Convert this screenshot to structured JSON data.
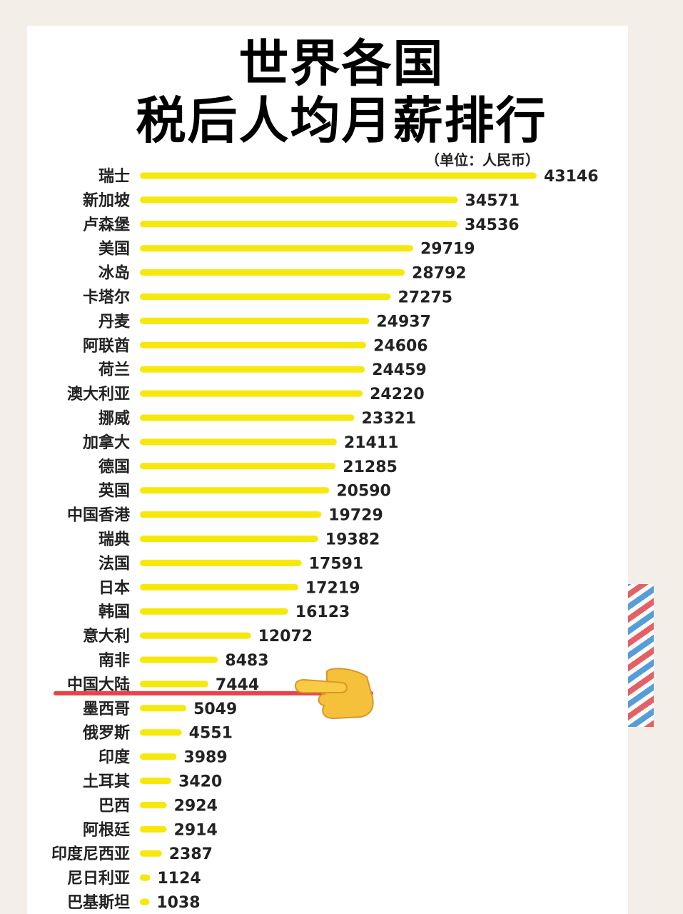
{
  "title_line1": "世界各国",
  "title_line2": "税后人均月薪排行",
  "unit": "（单位：人民币）",
  "highlight": {
    "country": "中国大陆",
    "line_color": "#e8434b",
    "icon": "pointing-hand-icon"
  },
  "colors": {
    "bar": "#f7e80c",
    "text": "#222222"
  },
  "chart_data": {
    "type": "bar",
    "orientation": "horizontal",
    "title": "世界各国 税后人均月薪排行",
    "unit": "（单位：人民币）",
    "categories": [
      "瑞士",
      "新加坡",
      "卢森堡",
      "美国",
      "冰岛",
      "卡塔尔",
      "丹麦",
      "阿联酋",
      "荷兰",
      "澳大利亚",
      "挪威",
      "加拿大",
      "德国",
      "英国",
      "中国香港",
      "瑞典",
      "法国",
      "日本",
      "韩国",
      "意大利",
      "南非",
      "中国大陆",
      "墨西哥",
      "俄罗斯",
      "印度",
      "土耳其",
      "巴西",
      "阿根廷",
      "印度尼西亚",
      "尼日利亚",
      "巴基斯坦"
    ],
    "values": [
      43146,
      34571,
      34536,
      29719,
      28792,
      27275,
      24937,
      24606,
      24459,
      24220,
      23321,
      21411,
      21285,
      20590,
      19729,
      19382,
      17591,
      17219,
      16123,
      12072,
      8483,
      7444,
      5049,
      4551,
      3989,
      3420,
      2924,
      2914,
      2387,
      1124,
      1038
    ],
    "value_labels": [
      "43146",
      "34571",
      "34536",
      "29719",
      "28792",
      "27275",
      "24937",
      "24606",
      "24459",
      "24220",
      "23321",
      "21411",
      "21285",
      "20590",
      "19729",
      "19382",
      "17591",
      "17219",
      "16123",
      "12072",
      "8483",
      "7444",
      "5049",
      "4551",
      "3989",
      "3420",
      "2924",
      "2914",
      "2387",
      "1124",
      "1038"
    ],
    "xlim": [
      0,
      43146
    ],
    "grid": false,
    "legend": "none"
  }
}
